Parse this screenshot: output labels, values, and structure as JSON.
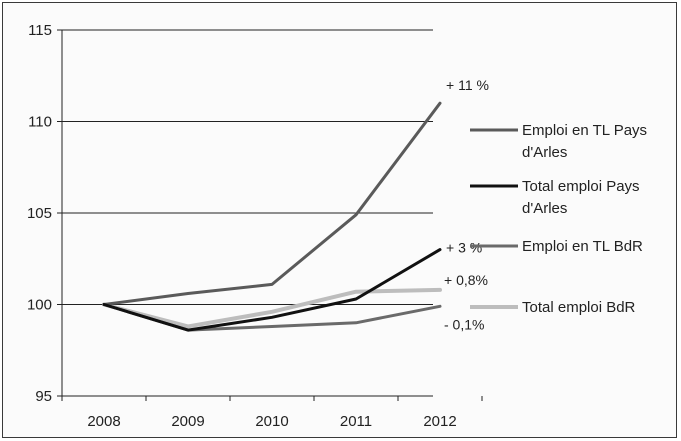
{
  "chart_data": {
    "type": "line",
    "title": "",
    "xlabel": "",
    "ylabel": "",
    "x": [
      "2008",
      "2009",
      "2010",
      "2011",
      "2012"
    ],
    "ylim": [
      95,
      115
    ],
    "yticks": [
      "95",
      "100",
      "105",
      "110",
      "115"
    ],
    "grid": true,
    "legend_position": "right",
    "series": [
      {
        "name": "Emploi en TL Pays d'Arles",
        "legend_lines": [
          "Emploi en TL Pays",
          "d'Arles"
        ],
        "color": "#5a5a5a",
        "values": [
          100,
          100.6,
          101.1,
          104.9,
          111.0
        ],
        "annotation": "+ 11 %"
      },
      {
        "name": "Total emploi Pays d'Arles",
        "legend_lines": [
          "Total emploi Pays",
          "d'Arles"
        ],
        "color": "#111111",
        "values": [
          100,
          98.6,
          99.3,
          100.3,
          103.0
        ],
        "annotation": "+ 3 %"
      },
      {
        "name": "Emploi en TL BdR",
        "legend_lines": [
          "Emploi en TL BdR"
        ],
        "color": "#6a6a6a",
        "values": [
          100,
          98.6,
          98.8,
          99.0,
          99.9
        ],
        "annotation": "- 0,1%"
      },
      {
        "name": "Total emploi BdR",
        "legend_lines": [
          "Total emploi BdR"
        ],
        "color": "#bdbdbd",
        "values": [
          100,
          98.8,
          99.6,
          100.7,
          100.8
        ],
        "annotation": "+ 0,8%"
      }
    ]
  }
}
